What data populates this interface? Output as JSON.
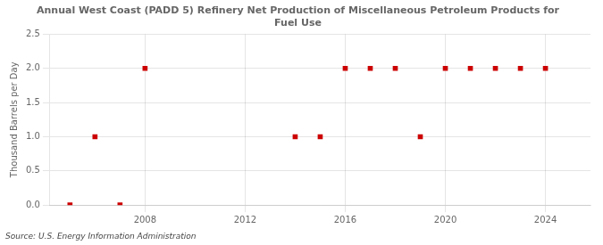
{
  "chart_data": {
    "type": "scatter",
    "title": "Annual West Coast (PADD 5) Refinery Net Production of Miscellaneous Petroleum Products for\nFuel Use",
    "ylabel": "Thousand Barrels per Day",
    "source": "Source: U.S. Energy Information Administration",
    "x": [
      2005,
      2006,
      2007,
      2008,
      2014,
      2015,
      2016,
      2017,
      2018,
      2019,
      2020,
      2021,
      2022,
      2023,
      2024
    ],
    "values": [
      0.0,
      1.0,
      0.0,
      2.0,
      1.0,
      1.0,
      2.0,
      2.0,
      2.0,
      1.0,
      2.0,
      2.0,
      2.0,
      2.0,
      2.0
    ],
    "color": "#cc0000",
    "marker": "square",
    "xlim": [
      2004.2,
      2025.8
    ],
    "xticks": [
      2008,
      2012,
      2016,
      2020,
      2024
    ],
    "ylim": [
      0,
      2.5
    ],
    "yticks": [
      {
        "value": 0,
        "label": "0.0"
      },
      0.5,
      {
        "value": 1,
        "label": "1.0"
      },
      1.5,
      {
        "value": 2,
        "label": "2.0"
      },
      2.5
    ],
    "grid": true
  }
}
